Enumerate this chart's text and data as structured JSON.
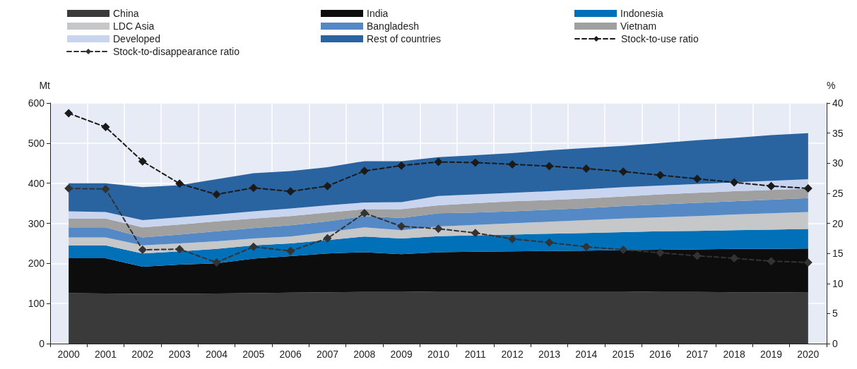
{
  "chart_data": {
    "type": "area",
    "stacked": true,
    "ylabel": "Mt",
    "y2label": "%",
    "categories": [
      "2000",
      "2001",
      "2002",
      "2003",
      "2004",
      "2005",
      "2006",
      "2007",
      "2008",
      "2009",
      "2010",
      "2011",
      "2012",
      "2013",
      "2014",
      "2015",
      "2016",
      "2017",
      "2018",
      "2019",
      "2020"
    ],
    "ylim": [
      0,
      600
    ],
    "yticks": [
      0,
      100,
      200,
      300,
      400,
      500,
      600
    ],
    "y2lim": [
      0,
      40
    ],
    "y2ticks": [
      0,
      5,
      10,
      15,
      20,
      25,
      30,
      35,
      40
    ],
    "grid": true,
    "legend": "top",
    "series": [
      {
        "name": "China",
        "color": "#3a3a3a",
        "values": [
          126,
          125,
          124,
          124,
          125,
          126,
          127,
          128,
          129,
          129,
          130,
          130,
          130,
          130,
          130,
          130,
          129,
          129,
          128,
          128,
          127
        ]
      },
      {
        "name": "India",
        "color": "#0d0d0d",
        "values": [
          87,
          88,
          68,
          73,
          75,
          86,
          91,
          97,
          99,
          94,
          98,
          99,
          100,
          101,
          102,
          103,
          105,
          106,
          108,
          108,
          110
        ]
      },
      {
        "name": "Indonesia",
        "color": "#0070b8",
        "values": [
          32,
          32,
          33,
          33,
          36,
          33,
          32,
          33,
          39,
          39,
          40,
          41,
          42,
          43,
          44,
          45,
          46,
          46,
          47,
          48,
          49
        ]
      },
      {
        "name": "LDC Asia",
        "color": "#c6c7c9",
        "values": [
          20,
          20,
          20,
          20,
          19,
          17,
          17,
          20,
          23,
          21,
          24,
          26,
          28,
          30,
          32,
          34,
          35,
          37,
          39,
          41,
          42
        ]
      },
      {
        "name": "Bangladesh",
        "color": "#5589c6",
        "values": [
          25,
          25,
          20,
          22,
          25,
          26,
          28,
          27,
          28,
          30,
          33,
          31,
          30,
          30,
          30,
          31,
          32,
          33,
          33,
          34,
          35
        ]
      },
      {
        "name": "Vietnam",
        "color": "#a0a0a0",
        "values": [
          22,
          22,
          25,
          25,
          25,
          24,
          23,
          22,
          17,
          22,
          20,
          23,
          25,
          24,
          24,
          24,
          25,
          25,
          25,
          24,
          23
        ]
      },
      {
        "name": "Developed",
        "color": "#c9d5ee",
        "values": [
          18,
          16,
          18,
          18,
          17,
          18,
          19,
          18,
          17,
          18,
          23,
          22,
          21,
          22,
          23,
          23,
          22,
          22,
          22,
          23,
          24
        ]
      },
      {
        "name": "Rest of countries",
        "color": "#2a64a0",
        "values": [
          70,
          72,
          82,
          80,
          88,
          95,
          93,
          95,
          103,
          102,
          97,
          98,
          99,
          102,
          103,
          103,
          106,
          109,
          111,
          114,
          115
        ]
      },
      {
        "name": "Stock-to-use ratio",
        "type": "line",
        "axis": "y2",
        "marker": "diamond",
        "line_style": "dashed",
        "color": "#1a1a1a",
        "values": [
          38.3,
          36,
          30.3,
          26.6,
          24.8,
          25.9,
          25.3,
          26.2,
          28.7,
          29.6,
          30.2,
          30.1,
          29.8,
          29.5,
          29.1,
          28.6,
          28,
          27.4,
          26.8,
          26.2,
          25.8
        ]
      },
      {
        "name": "Stock-to-disappearance ratio",
        "type": "line",
        "axis": "y2",
        "marker": "diamond",
        "line_style": "dashed",
        "color": "#333333",
        "values": [
          25.8,
          25.7,
          15.6,
          15.7,
          13.5,
          16.1,
          15.4,
          17.5,
          21.7,
          19.5,
          19.1,
          18.4,
          17.4,
          16.8,
          16.1,
          15.6,
          15.1,
          14.6,
          14.2,
          13.7,
          13.5
        ]
      }
    ]
  }
}
